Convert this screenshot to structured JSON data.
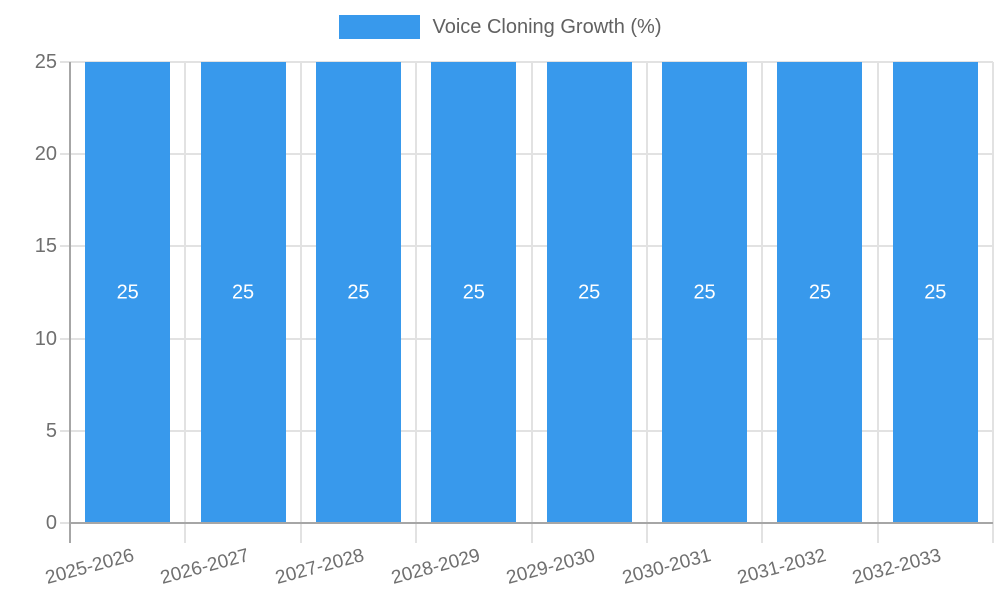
{
  "chart_data": {
    "type": "bar",
    "title": "",
    "legend": "Voice Cloning Growth (%)",
    "legend_position": "top",
    "categories": [
      "2025-2026",
      "2026-2027",
      "2027-2028",
      "2028-2029",
      "2029-2030",
      "2030-2031",
      "2031-2032",
      "2032-2033"
    ],
    "values": [
      25,
      25,
      25,
      25,
      25,
      25,
      25,
      25
    ],
    "xlabel": "",
    "ylabel": "",
    "ylim": [
      0,
      25
    ],
    "yticks": [
      0,
      5,
      10,
      15,
      20,
      25
    ],
    "grid": true,
    "bar_value_labels_visible": true,
    "colors": {
      "bar": "#3899ec",
      "bar_value_label": "#ffffff"
    }
  }
}
